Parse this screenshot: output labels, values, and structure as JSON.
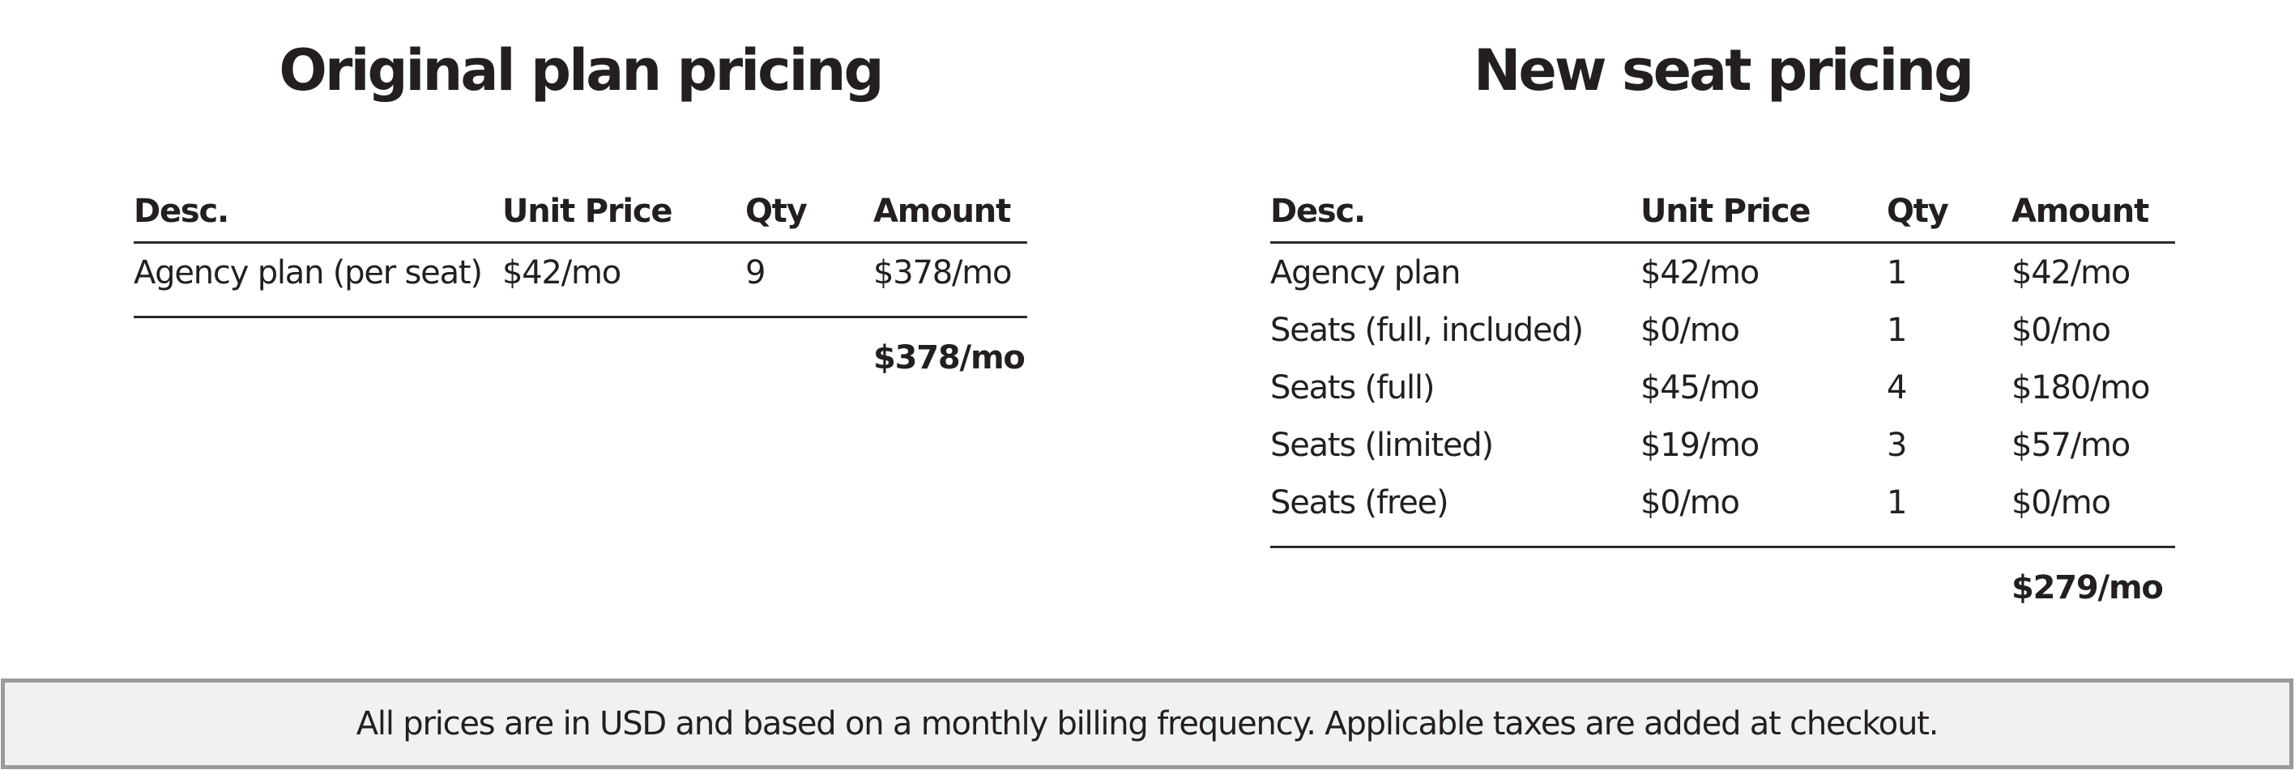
{
  "page": {
    "background": "#ffffff",
    "text_color": "#231f20",
    "rule_color": "#2e2a2b"
  },
  "tables": [
    {
      "title": "Original plan pricing",
      "columns": [
        "Desc.",
        "Unit Price",
        "Qty",
        "Amount"
      ],
      "rows": [
        [
          "Agency plan (per seat)",
          "$42/mo",
          "9",
          "$378/mo"
        ]
      ],
      "total": "$378/mo"
    },
    {
      "title": "New seat pricing",
      "columns": [
        "Desc.",
        "Unit Price",
        "Qty",
        "Amount"
      ],
      "rows": [
        [
          "Agency plan",
          "$42/mo",
          "1",
          "$42/mo"
        ],
        [
          "Seats (full, included)",
          "$0/mo",
          "1",
          "$0/mo"
        ],
        [
          "Seats (full)",
          "$45/mo",
          "4",
          "$180/mo"
        ],
        [
          "Seats (limited)",
          "$19/mo",
          "3",
          "$57/mo"
        ],
        [
          "Seats (free)",
          "$0/mo",
          "1",
          "$0/mo"
        ]
      ],
      "total": "$279/mo"
    }
  ],
  "footer": {
    "note": "All prices are in USD and based on a monthly billing frequency. Applicable taxes are added at checkout.",
    "background": "#f1f1f1",
    "border_color": "#9a9a9a"
  }
}
